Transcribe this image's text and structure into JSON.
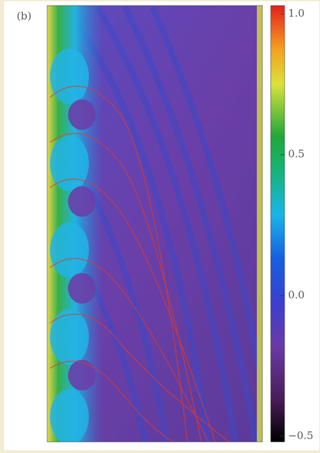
{
  "chart_data": {
    "type": "heatmap",
    "title": "(b)",
    "colorbar": {
      "clim": [
        -0.52,
        1.03
      ],
      "ticks": [
        {
          "value": 1,
          "label": "1.0"
        },
        {
          "value": 0.5,
          "label": "0.5"
        },
        {
          "value": 0,
          "label": "0.0"
        },
        {
          "value": -0.5,
          "label": "−0.5"
        }
      ]
    }
  }
}
